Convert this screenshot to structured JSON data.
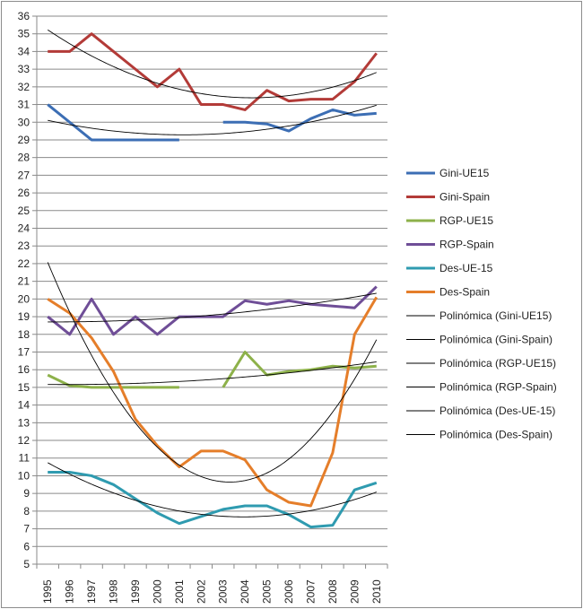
{
  "chart_data": {
    "type": "line",
    "title": "",
    "xlabel": "",
    "ylabel": "",
    "categories": [
      "1995",
      "1996",
      "1997",
      "1998",
      "1999",
      "2000",
      "2001",
      "2002",
      "2003",
      "2004",
      "2005",
      "2006",
      "2007",
      "2008",
      "2009",
      "2010"
    ],
    "ylim": [
      5,
      36
    ],
    "yticks": [
      5,
      6,
      7,
      8,
      9,
      10,
      11,
      12,
      13,
      14,
      15,
      16,
      17,
      18,
      19,
      20,
      21,
      22,
      23,
      24,
      25,
      26,
      27,
      28,
      29,
      30,
      31,
      32,
      33,
      34,
      35,
      36
    ],
    "grid": true,
    "legend_position": "right",
    "series": [
      {
        "name": "Gini-UE15",
        "color": "#3c6eb4",
        "values": [
          31,
          30,
          29,
          29,
          29,
          29,
          29,
          null,
          30,
          30,
          29.9,
          29.5,
          30.2,
          30.7,
          30.4,
          30.5
        ]
      },
      {
        "name": "Gini-Spain",
        "color": "#b33b38",
        "values": [
          34,
          34,
          35,
          34,
          33,
          32,
          33,
          31,
          31,
          30.7,
          31.8,
          31.2,
          31.3,
          31.3,
          32.3,
          33.9
        ]
      },
      {
        "name": "RGP-UE15",
        "color": "#8db14a",
        "values": [
          15.7,
          15.1,
          15,
          15,
          15,
          15,
          15,
          null,
          15,
          17,
          15.7,
          15.9,
          16,
          16.2,
          16.1,
          16.2
        ]
      },
      {
        "name": "RGP-Spain",
        "color": "#6f4e97",
        "values": [
          19,
          18,
          20,
          18,
          19,
          18,
          19,
          19,
          19,
          19.9,
          19.7,
          19.9,
          19.7,
          19.6,
          19.5,
          20.7
        ]
      },
      {
        "name": "Des-UE-15",
        "color": "#2f9bb0",
        "values": [
          10.2,
          10.2,
          10,
          9.5,
          8.7,
          7.9,
          7.3,
          7.7,
          8.1,
          8.3,
          8.3,
          7.8,
          7.1,
          7.2,
          9.2,
          9.6
        ]
      },
      {
        "name": "Des-Spain",
        "color": "#e57e2a",
        "values": [
          20,
          19.2,
          17.8,
          15.9,
          13.2,
          11.7,
          10.5,
          11.4,
          11.4,
          10.9,
          9.2,
          8.5,
          8.3,
          11.3,
          18,
          20.1
        ]
      }
    ],
    "trendlines": [
      {
        "name": "Polinómica (Gini-UE15)",
        "of": 0,
        "order": 2,
        "color": "#000000"
      },
      {
        "name": "Polinómica (Gini-Spain)",
        "of": 1,
        "order": 2,
        "color": "#000000"
      },
      {
        "name": "Polinómica (RGP-UE15)",
        "of": 2,
        "order": 2,
        "color": "#000000"
      },
      {
        "name": "Polinómica (RGP-Spain)",
        "of": 3,
        "order": 2,
        "color": "#000000"
      },
      {
        "name": "Polinómica (Des-UE-15)",
        "of": 4,
        "order": 2,
        "color": "#000000"
      },
      {
        "name": "Polinómica (Des-Spain)",
        "of": 5,
        "order": 2,
        "color": "#000000"
      }
    ]
  }
}
